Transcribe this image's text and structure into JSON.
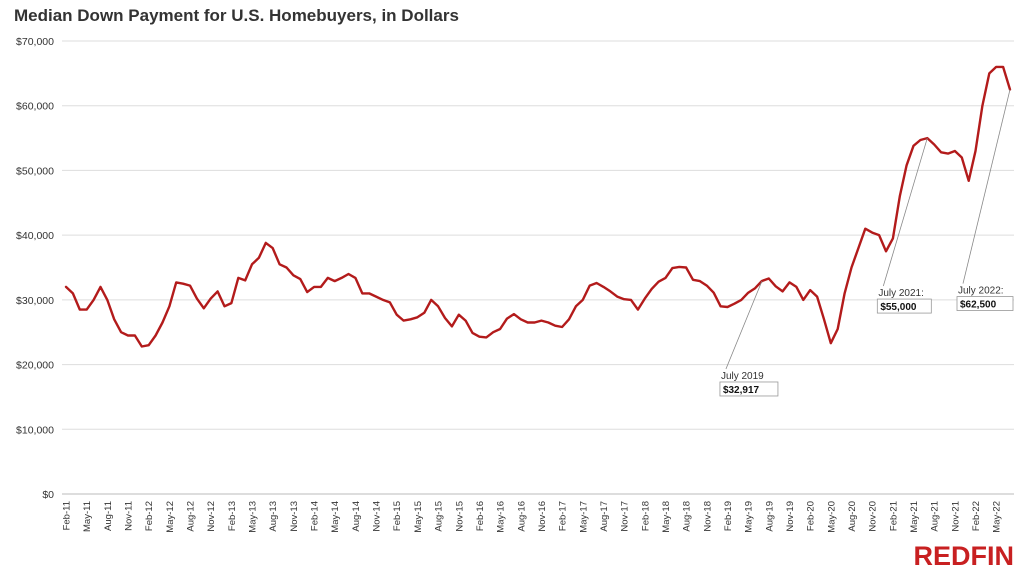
{
  "brand": {
    "logo_text": "REDFIN",
    "color": "#c82021"
  },
  "colors": {
    "line": "#b31b1b",
    "grid": "#dddddd",
    "annotation_line": "#888888"
  },
  "chart_data": {
    "type": "line",
    "title": "Median Down Payment for U.S. Homebuyers, in Dollars",
    "xlabel": "",
    "ylabel": "",
    "ylim": [
      0,
      70000
    ],
    "yticks": [
      0,
      10000,
      20000,
      30000,
      40000,
      50000,
      60000,
      70000
    ],
    "ytick_labels": [
      "$0",
      "$10,000",
      "$20,000",
      "$30,000",
      "$40,000",
      "$50,000",
      "$60,000",
      "$70,000"
    ],
    "grid": true,
    "x_tick_labels": [
      "Feb-11",
      "May-11",
      "Aug-11",
      "Nov-11",
      "Feb-12",
      "May-12",
      "Aug-12",
      "Nov-12",
      "Feb-13",
      "May-13",
      "Aug-13",
      "Nov-13",
      "Feb-14",
      "May-14",
      "Aug-14",
      "Nov-14",
      "Feb-15",
      "May-15",
      "Aug-15",
      "Nov-15",
      "Feb-16",
      "May-16",
      "Aug-16",
      "Nov-16",
      "Feb-17",
      "May-17",
      "Aug-17",
      "Nov-17",
      "Feb-18",
      "May-18",
      "Aug-18",
      "Nov-18",
      "Feb-19",
      "May-19",
      "Aug-19",
      "Nov-19",
      "Feb-20",
      "May-20",
      "Aug-20",
      "Nov-20",
      "Feb-21",
      "May-21",
      "Aug-21",
      "Nov-21",
      "Feb-22",
      "May-22"
    ],
    "x_start": "2011-02",
    "x_end": "2022-07",
    "series": [
      {
        "values": [
          32000,
          31000,
          28500,
          28500,
          30000,
          32000,
          30000,
          27000,
          25000,
          24500,
          24500,
          22800,
          23000,
          24500,
          26500,
          29000,
          32700,
          32500,
          32200,
          30200,
          28700,
          30200,
          31300,
          29000,
          29500,
          33400,
          33000,
          35500,
          36500,
          38800,
          38000,
          35500,
          35000,
          33800,
          33200,
          31200,
          32000,
          32000,
          33400,
          32900,
          33400,
          34000,
          33400,
          31000,
          31000,
          30500,
          30000,
          29600,
          27700,
          26800,
          27000,
          27300,
          28000,
          30000,
          29000,
          27200,
          25900,
          27700,
          26800,
          24900,
          24300,
          24200,
          25000,
          25500,
          27100,
          27800,
          27000,
          26500,
          26500,
          26800,
          26500,
          26000,
          25800,
          27000,
          29000,
          30000,
          32200,
          32600,
          32000,
          31300,
          30500,
          30100,
          30000,
          28500,
          30200,
          31700,
          32800,
          33400,
          34900,
          35100,
          35000,
          33100,
          32900,
          32200,
          31100,
          29000,
          28900,
          29400,
          30000,
          31100,
          31800,
          32917,
          33300,
          32100,
          31300,
          32700,
          32000,
          30000,
          31500,
          30500,
          27000,
          23300,
          25500,
          31000,
          35000,
          38000,
          41000,
          40400,
          40000,
          37500,
          39500,
          46000,
          50800,
          53800,
          54700,
          55000,
          54000,
          52800,
          52600,
          53000,
          52000,
          48400,
          53000,
          60000,
          65000,
          66000,
          66000,
          62500
        ]
      }
    ],
    "annotations": [
      {
        "label": "July 2019",
        "value_label": "$32,917",
        "x": "2019-07",
        "y": 32917
      },
      {
        "label": "July 2021:",
        "value_label": "$55,000",
        "x": "2021-07",
        "y": 55000
      },
      {
        "label": "July 2022:",
        "value_label": "$62,500",
        "x": "2022-07",
        "y": 62500
      }
    ]
  }
}
